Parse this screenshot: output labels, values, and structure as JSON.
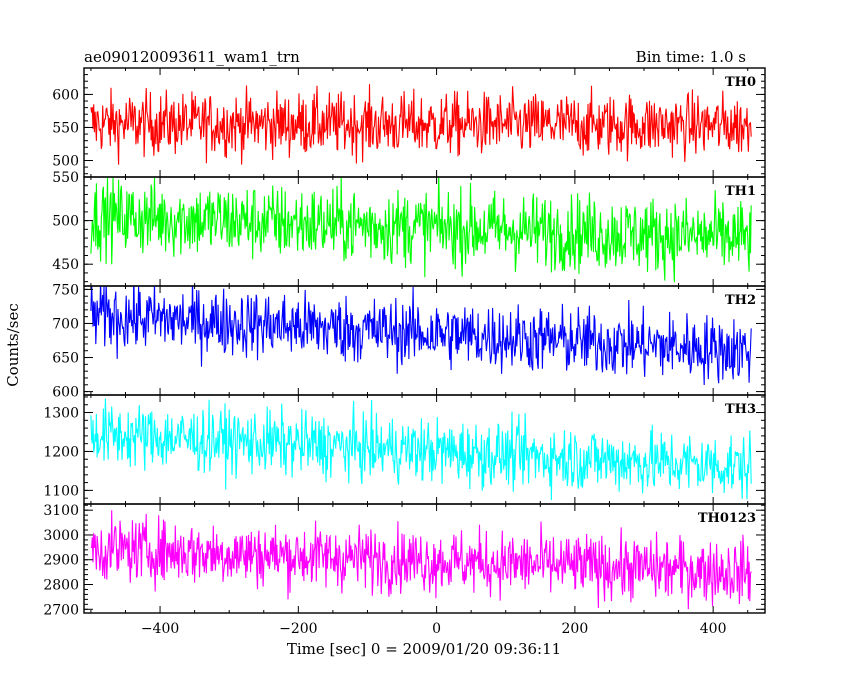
{
  "header": {
    "left_title": "ae090120093611_wam1_trn",
    "right_title": "Bin time: 1.0 s"
  },
  "chart_data": {
    "type": "line",
    "xlabel": "Time [sec] 0 = 2009/01/20 09:36:11",
    "ylabel": "Counts/sec",
    "xlim": [
      -510,
      475
    ],
    "x_range": [
      -500,
      455
    ],
    "x_ticks": [
      -400,
      -200,
      0,
      200,
      400
    ],
    "x_tick_labels": [
      "−400",
      "−200",
      "0",
      "200",
      "400"
    ],
    "bin_time": 1.0,
    "grid": false,
    "panels": [
      {
        "name": "TH0",
        "color": "#ff0000",
        "ylim": [
          475,
          640
        ],
        "yticks": [
          500,
          550,
          600
        ],
        "mean_start": 556,
        "mean_end": 553,
        "noise": 24
      },
      {
        "name": "TH1",
        "color": "#00ff00",
        "ylim": [
          425,
          550
        ],
        "yticks": [
          450,
          500,
          550
        ],
        "mean_start": 505,
        "mean_end": 480,
        "noise": 22
      },
      {
        "name": "TH2",
        "color": "#0000ff",
        "ylim": [
          595,
          755
        ],
        "yticks": [
          600,
          650,
          700,
          750
        ],
        "mean_start": 712,
        "mean_end": 660,
        "noise": 25
      },
      {
        "name": "TH3",
        "color": "#00ffff",
        "ylim": [
          1065,
          1345
        ],
        "yticks": [
          1100,
          1200,
          1300
        ],
        "mean_start": 1245,
        "mean_end": 1160,
        "noise": 42
      },
      {
        "name": "TH0123",
        "color": "#ff00ff",
        "ylim": [
          2685,
          3125
        ],
        "yticks": [
          2700,
          2800,
          2900,
          3000,
          3100
        ],
        "mean_start": 2945,
        "mean_end": 2850,
        "noise": 65
      }
    ]
  }
}
